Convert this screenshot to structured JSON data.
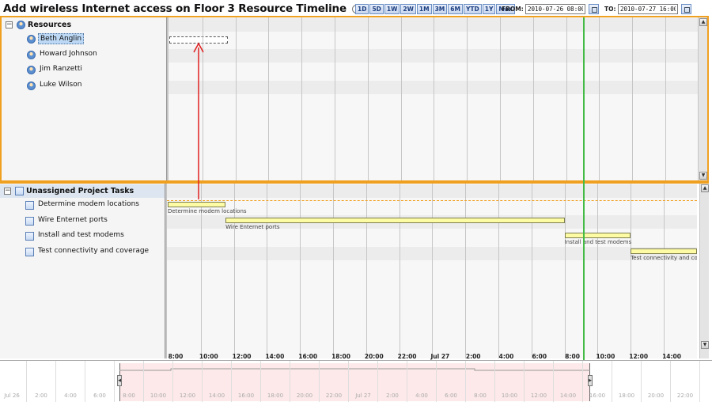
{
  "header": {
    "title": "Add wireless Internet access on Floor 3 Resource Timeline",
    "info_icon": "i",
    "zoom_buttons": [
      "1D",
      "5D",
      "1W",
      "2W",
      "1M",
      "3M",
      "6M",
      "YTD",
      "1Y",
      "Max"
    ],
    "from_label": "FROM:",
    "from_value": "2010-07-26 08:00:00",
    "to_label": "TO:",
    "to_value": "2010-07-27 16:00:00"
  },
  "resources": {
    "label": "Resources",
    "items": [
      {
        "label": "Beth Anglin",
        "selected": true
      },
      {
        "label": "Howard Johnson",
        "selected": false
      },
      {
        "label": "Jim Ranzetti",
        "selected": false
      },
      {
        "label": "Luke Wilson",
        "selected": false
      }
    ]
  },
  "tasks": {
    "label": "Unassigned Project Tasks",
    "items": [
      {
        "label": "Determine modem locations",
        "bar_label": "Determine modem locations",
        "start_hour": 0,
        "end_hour": 3.5
      },
      {
        "label": "Wire Enternet ports",
        "bar_label": "Wire Enternet ports",
        "start_hour": 3.5,
        "end_hour": 24
      },
      {
        "label": "Install and test modems",
        "bar_label": "Install and test modems",
        "start_hour": 24,
        "end_hour": 28
      },
      {
        "label": "Test connectivity and coverage",
        "bar_label": "Test connectivity and coverage",
        "start_hour": 28,
        "end_hour": 32
      }
    ]
  },
  "timeline": {
    "start_hour": 0,
    "end_hour": 32,
    "now_hour": 25.1,
    "ticks": [
      "8:00",
      "10:00",
      "12:00",
      "14:00",
      "16:00",
      "18:00",
      "20:00",
      "22:00",
      "Jul 27",
      "2:00",
      "4:00",
      "6:00",
      "8:00",
      "10:00",
      "12:00",
      "14:00"
    ]
  },
  "overview": {
    "ticks": [
      "Jul 26",
      "2:00",
      "4:00",
      "6:00",
      "8:00",
      "10:00",
      "12:00",
      "14:00",
      "16:00",
      "18:00",
      "20:00",
      "22:00",
      "Jul 27",
      "2:00",
      "4:00",
      "6:00",
      "8:00",
      "10:00",
      "12:00",
      "14:00",
      "16:00",
      "18:00",
      "20:00",
      "22:00"
    ]
  },
  "colors": {
    "panel_border": "#f0a020",
    "now_line": "#44bb44",
    "task_bar": "#fdfca4",
    "drag_arrow": "#e02020"
  }
}
